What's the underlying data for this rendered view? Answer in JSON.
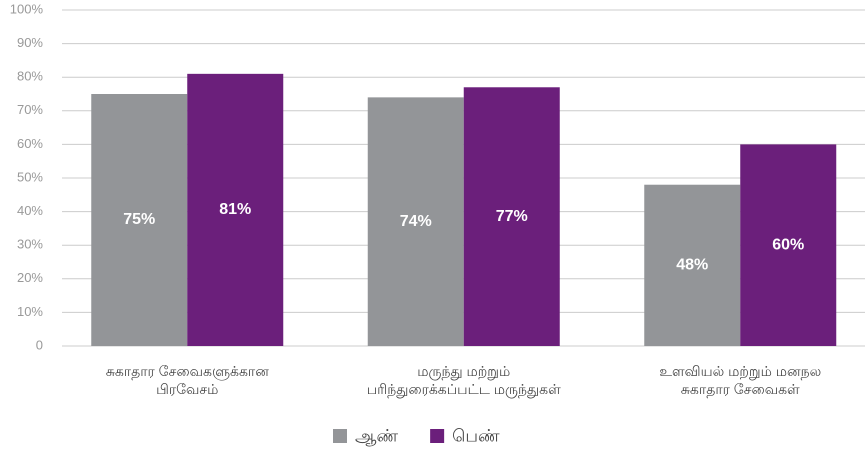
{
  "chart_data": {
    "type": "bar",
    "categories": [
      "சுகாதார சேவைகளுக்கான\nபிரவேசம்",
      "மருந்து மற்றும்\nபரிந்துரைக்கப்பட்ட மருந்துகள்",
      "உளவியல் மற்றும் மனநல\nசுகாதார சேவைகள்"
    ],
    "series": [
      {
        "name": "ஆண்",
        "color": "#939598",
        "values": [
          75,
          74,
          48
        ],
        "value_labels": [
          "75%",
          "74%",
          "48%"
        ]
      },
      {
        "name": "பெண்",
        "color": "#6b1f7b",
        "values": [
          81,
          77,
          60
        ],
        "value_labels": [
          "81%",
          "77%",
          "60%"
        ]
      }
    ],
    "ylim": [
      0,
      100
    ],
    "yticks": [
      0,
      {
        "value": 10,
        "label": "10%"
      },
      {
        "value": 20,
        "label": "20%"
      },
      {
        "value": 30,
        "label": "30%"
      },
      {
        "value": 40,
        "label": "40%"
      },
      {
        "value": 50,
        "label": "50%"
      },
      {
        "value": 60,
        "label": "60%"
      },
      {
        "value": 70,
        "label": "70%"
      },
      {
        "value": 80,
        "label": "80%"
      },
      {
        "value": 90,
        "label": "90%"
      },
      {
        "value": 100,
        "label": "100%"
      }
    ],
    "grid": true,
    "legend": "bottom"
  }
}
